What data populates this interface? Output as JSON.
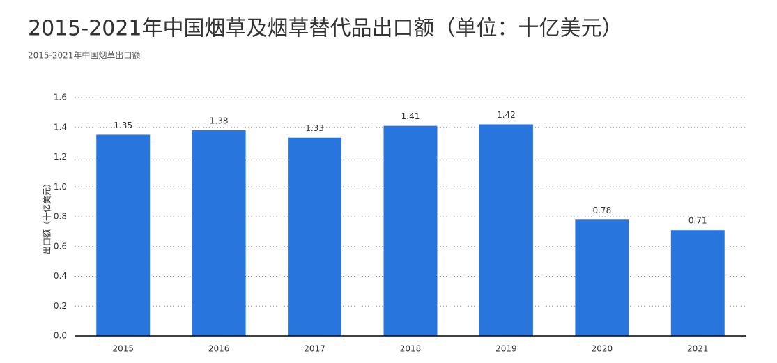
{
  "chart_data": {
    "type": "bar",
    "title": "2015-2021年中国烟草及烟草替代品出口额（单位：十亿美元）",
    "subtitle": "2015-2021年中国烟草出口额",
    "y_label": "出口额（十亿美元）",
    "categories": [
      "2015",
      "2016",
      "2017",
      "2018",
      "2019",
      "2020",
      "2021"
    ],
    "values": [
      1.35,
      1.38,
      1.33,
      1.41,
      1.42,
      0.78,
      0.71
    ],
    "color": "#2876dd",
    "ylim": [
      0,
      1.6
    ],
    "yticks": [
      {
        "value": 0,
        "label": "0.0"
      },
      0.2,
      0.4,
      0.6,
      0.8,
      {
        "value": 1,
        "label": "1.0"
      },
      1.2,
      1.4,
      1.6
    ],
    "grid": true
  }
}
